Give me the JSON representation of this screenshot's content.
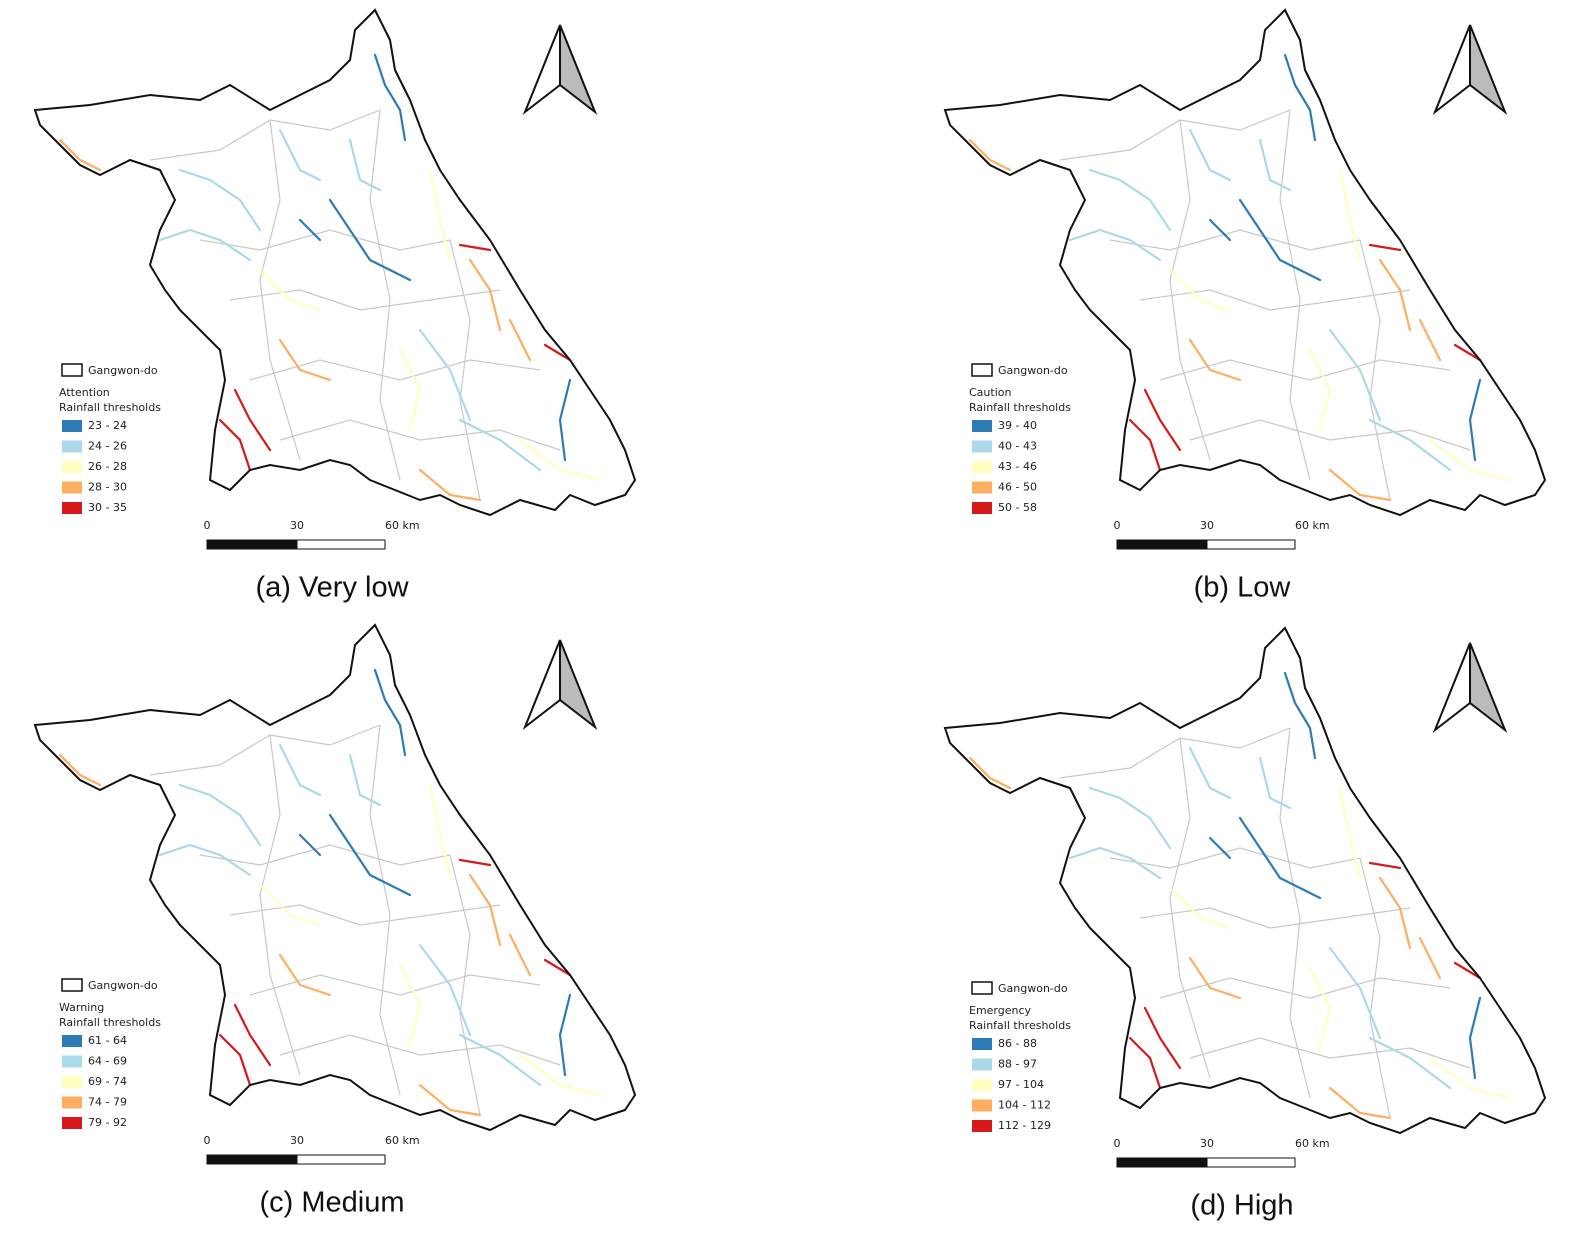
{
  "panels": [
    {
      "caption": "(a) Very low",
      "legend": {
        "boundary_label": "Gangwon-do",
        "title": [
          "Attention",
          "Rainfall thresholds"
        ],
        "classes": [
          "23 - 24",
          "24 - 26",
          "26 - 28",
          "28 - 30",
          "30 - 35"
        ]
      },
      "scale_labels": [
        "0",
        "30",
        "60 km"
      ]
    },
    {
      "caption": "(b) Low",
      "legend": {
        "boundary_label": "Gangwon-do",
        "title": [
          "Caution",
          "Rainfall thresholds"
        ],
        "classes": [
          "39 - 40",
          "40 - 43",
          "43 - 46",
          "46 - 50",
          "50 - 58"
        ]
      },
      "scale_labels": [
        "0",
        "30",
        "60 km"
      ]
    },
    {
      "caption": "(c) Medium",
      "legend": {
        "boundary_label": "Gangwon-do",
        "title": [
          "Warning",
          "Rainfall thresholds"
        ],
        "classes": [
          "61 - 64",
          "64 - 69",
          "69 - 74",
          "74 - 79",
          "79 - 92"
        ]
      },
      "scale_labels": [
        "0",
        "30",
        "60 km"
      ]
    },
    {
      "caption": "(d) High",
      "legend": {
        "boundary_label": "Gangwon-do",
        "title": [
          "Emergency",
          "Rainfall thresholds"
        ],
        "classes": [
          "86 - 88",
          "88 - 97",
          "97 - 104",
          "104 - 112",
          "112 - 129"
        ]
      },
      "scale_labels": [
        "0",
        "30",
        "60 km"
      ]
    }
  ],
  "class_colors": [
    "#2c7bb6",
    "#abd9e9",
    "#ffffbf",
    "#fdae61",
    "#d7191c"
  ]
}
